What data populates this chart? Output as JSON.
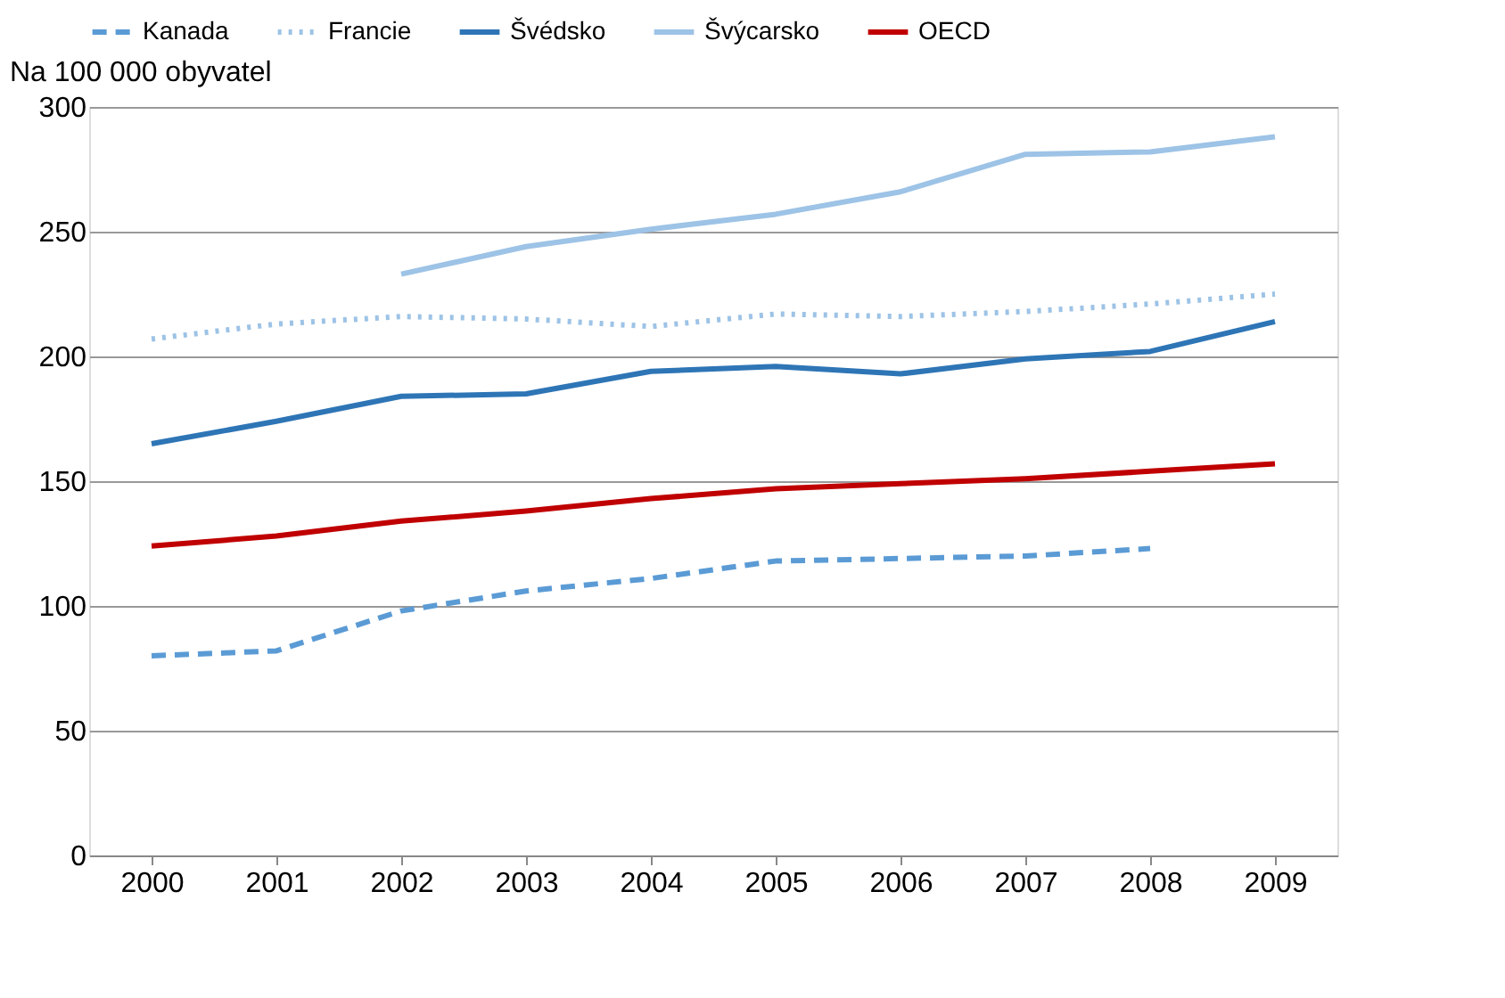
{
  "chart_data": {
    "type": "line",
    "ylabel": "Na 100 000 obyvatel",
    "categories": [
      "2000",
      "2001",
      "2002",
      "2003",
      "2004",
      "2005",
      "2006",
      "2007",
      "2008",
      "2009"
    ],
    "series": [
      {
        "name": "Kanada",
        "color": "#5b9bd5",
        "line_style": "dashed",
        "values": [
          80,
          82,
          98,
          106,
          111,
          118,
          119,
          120,
          123,
          null
        ]
      },
      {
        "name": "Francie",
        "color": "#9dc3e6",
        "line_style": "dotted",
        "values": [
          207,
          213,
          216,
          215,
          212,
          217,
          216,
          218,
          221,
          225
        ]
      },
      {
        "name": "Švédsko",
        "color": "#2e75b6",
        "line_style": "solid",
        "values": [
          165,
          174,
          184,
          185,
          194,
          196,
          193,
          199,
          202,
          214
        ]
      },
      {
        "name": "Švýcarsko",
        "color": "#9dc3e6",
        "line_style": "solid",
        "values": [
          null,
          null,
          233,
          244,
          251,
          257,
          266,
          281,
          282,
          288
        ]
      },
      {
        "name": "OECD",
        "color": "#c00000",
        "line_style": "solid",
        "values": [
          124,
          128,
          134,
          138,
          143,
          147,
          149,
          151,
          154,
          157
        ]
      }
    ],
    "ylim": [
      0,
      300
    ],
    "yticks": [
      0,
      50,
      100,
      150,
      200,
      250,
      300
    ],
    "grid": "y",
    "legend": "top",
    "marker": "none"
  }
}
